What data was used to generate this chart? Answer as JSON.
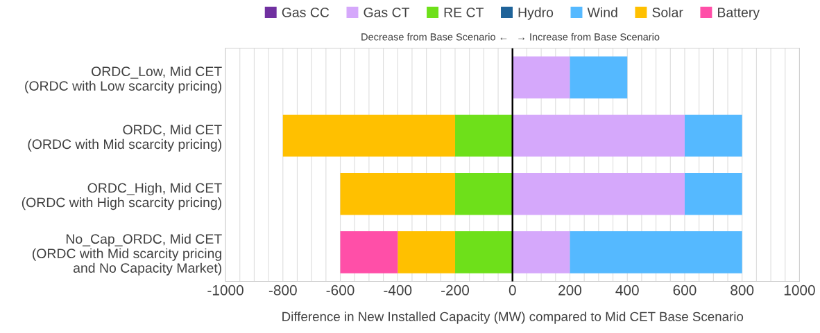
{
  "chart_data": {
    "type": "bar",
    "orientation": "horizontal",
    "stacked": true,
    "categories": [
      "ORDC_Low, Mid CET\n(ORDC with Low scarcity pricing)",
      "ORDC, Mid CET\n(ORDC with Mid scarcity pricing)",
      "ORDC_High, Mid CET\n(ORDC with High scarcity pricing)",
      "No_Cap_ORDC, Mid CET\n(ORDC with Mid scarcity pricing\nand No Capacity Market)"
    ],
    "series": [
      {
        "name": "Gas CC",
        "color": "#7030a0",
        "values": [
          0,
          0,
          0,
          0
        ]
      },
      {
        "name": "Gas CT",
        "color": "#d5a8fb",
        "values": [
          200,
          600,
          600,
          200
        ]
      },
      {
        "name": "RE CT",
        "color": "#6ee01a",
        "values": [
          0,
          -200,
          -200,
          -200
        ]
      },
      {
        "name": "Hydro",
        "color": "#1f6399",
        "values": [
          0,
          0,
          0,
          0
        ]
      },
      {
        "name": "Wind",
        "color": "#55b9ff",
        "values": [
          200,
          200,
          200,
          600
        ]
      },
      {
        "name": "Solar",
        "color": "#ffc000",
        "values": [
          0,
          -600,
          -400,
          -200
        ]
      },
      {
        "name": "Battery",
        "color": "#ff4fa8",
        "values": [
          0,
          0,
          0,
          -200
        ]
      }
    ],
    "xlabel": "Difference in New Installed Capacity (MW) compared to Mid CET Base Scenario",
    "xlim": [
      -1000,
      1000
    ],
    "xticks": [
      -1000,
      -800,
      -600,
      -400,
      -200,
      0,
      200,
      400,
      600,
      800,
      1000
    ],
    "grid": "x",
    "legend": "top",
    "ref_lines": [
      {
        "axis": "x",
        "value": 0,
        "color": "#000000"
      }
    ],
    "annotations": [
      "Decrease from Base Scenario ←",
      "→ Increase from Base Scenario"
    ]
  }
}
